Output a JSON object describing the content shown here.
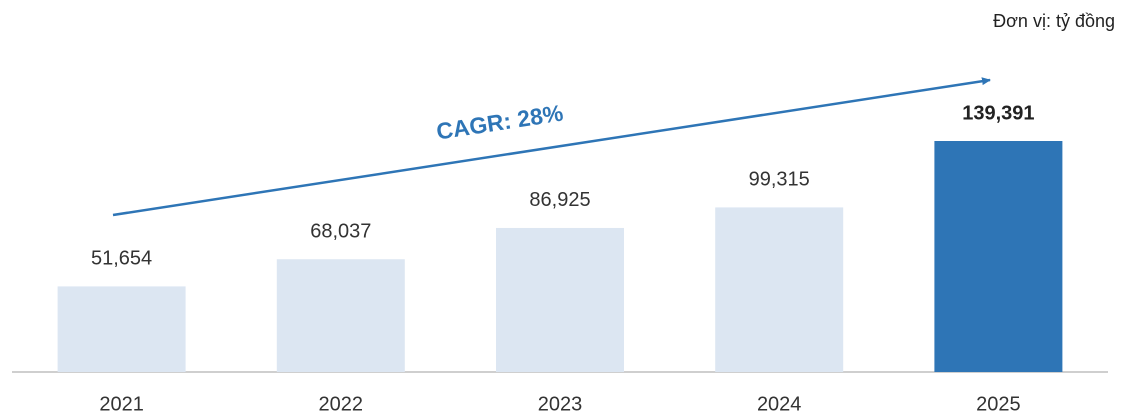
{
  "chart_data": {
    "type": "bar",
    "unit": "Đơn vị: tỷ đồng",
    "annotation": "CAGR: 28%",
    "categories": [
      "2021",
      "2022",
      "2023",
      "2024",
      "2025"
    ],
    "values": [
      51654,
      68037,
      86925,
      99315,
      139391
    ],
    "value_labels": [
      "51,654",
      "68,037",
      "86,925",
      "99,315",
      "139,391"
    ],
    "colors": [
      "#dce6f2",
      "#dce6f2",
      "#dce6f2",
      "#dce6f2",
      "#2e75b6"
    ],
    "bold_labels": [
      false,
      false,
      false,
      false,
      true
    ]
  }
}
